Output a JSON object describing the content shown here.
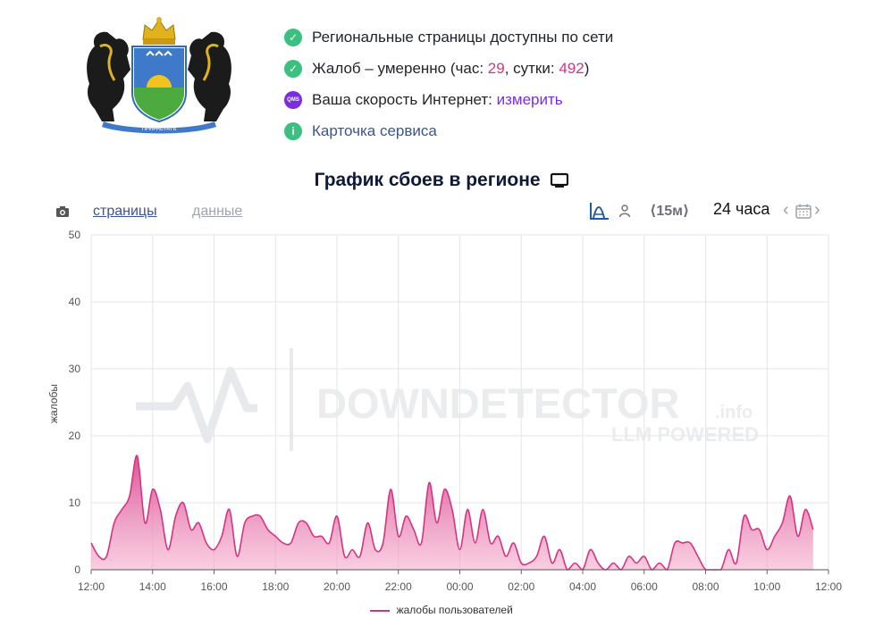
{
  "status": {
    "line1": "Региональные страницы доступны по сети",
    "line2_prefix": "Жалоб – умеренно (час: ",
    "hour_count": "29",
    "line2_mid": ", сутки: ",
    "day_count": "492",
    "line2_suffix": ")",
    "line3_prefix": "Ваша скорость Интернет: ",
    "line3_link": "измерить",
    "line3_icon_label": "QMS",
    "line4_link": "Карточка сервиса"
  },
  "emblem": {
    "ribbon_text": "ПРИРАСТАТЬ"
  },
  "title": "График сбоев в регионе",
  "tabs": {
    "pages": "страницы",
    "data": "данные"
  },
  "controls": {
    "period": "⟨15м⟩",
    "range": "24 часа"
  },
  "watermark": {
    "brand": "DOWNDETECTOR",
    "suffix": ".info",
    "tagline": "LLM POWERED"
  },
  "colors": {
    "series": "#d63384",
    "ok": "#3cc07f",
    "accent": "#7a2ee0",
    "link": "#3a5690"
  },
  "chart_data": {
    "type": "area",
    "ylabel": "жалобы",
    "xlabel": "",
    "ylim": [
      0,
      50
    ],
    "yticks": [
      "0",
      "10",
      "20",
      "30",
      "40",
      "50"
    ],
    "xticks": [
      "12:00",
      "14:00",
      "16:00",
      "18:00",
      "20:00",
      "22:00",
      "00:00",
      "02:00",
      "04:00",
      "06:00",
      "08:00",
      "10:00",
      "12:00"
    ],
    "grid": true,
    "legend_position": "bottom-center",
    "series": [
      {
        "name": "жалобы пользователей",
        "x_hours": [
          0,
          0.25,
          0.5,
          0.75,
          1,
          1.25,
          1.5,
          1.75,
          2,
          2.25,
          2.5,
          2.75,
          3,
          3.25,
          3.5,
          3.75,
          4,
          4.25,
          4.5,
          4.75,
          5,
          5.25,
          5.5,
          5.75,
          6,
          6.25,
          6.5,
          6.75,
          7,
          7.25,
          7.5,
          7.75,
          8,
          8.25,
          8.5,
          8.75,
          9,
          9.25,
          9.5,
          9.75,
          10,
          10.25,
          10.5,
          10.75,
          11,
          11.25,
          11.5,
          11.75,
          12,
          12.25,
          12.5,
          12.75,
          13,
          13.25,
          13.5,
          13.75,
          14,
          14.25,
          14.5,
          14.75,
          15,
          15.25,
          15.5,
          15.75,
          16,
          16.25,
          16.5,
          16.75,
          17,
          17.25,
          17.5,
          17.75,
          18,
          18.25,
          18.5,
          18.75,
          19,
          19.25,
          19.5,
          19.75,
          20,
          20.25,
          20.5,
          20.75,
          21,
          21.25,
          21.5,
          21.75,
          22,
          22.25,
          22.5,
          22.75,
          23,
          23.25,
          23.5
        ],
        "values": [
          4,
          2,
          2,
          7,
          9,
          11,
          17,
          7,
          12,
          9,
          3,
          8,
          10,
          6,
          7,
          4,
          3,
          5,
          9,
          2,
          7,
          8,
          8,
          6,
          5,
          4,
          4,
          7,
          7,
          5,
          5,
          4,
          8,
          2,
          3,
          2,
          7,
          3,
          4,
          12,
          5,
          8,
          6,
          4,
          13,
          7,
          12,
          9,
          3,
          9,
          4,
          9,
          4,
          5,
          2,
          4,
          1,
          1,
          2,
          5,
          1,
          3,
          0,
          1,
          0,
          3,
          1,
          0,
          1,
          0,
          2,
          1,
          2,
          0,
          1,
          0,
          4,
          4,
          4,
          2,
          0,
          0,
          0,
          3,
          1,
          8,
          6,
          6,
          3,
          5,
          7,
          11,
          5,
          9,
          6
        ]
      }
    ]
  }
}
